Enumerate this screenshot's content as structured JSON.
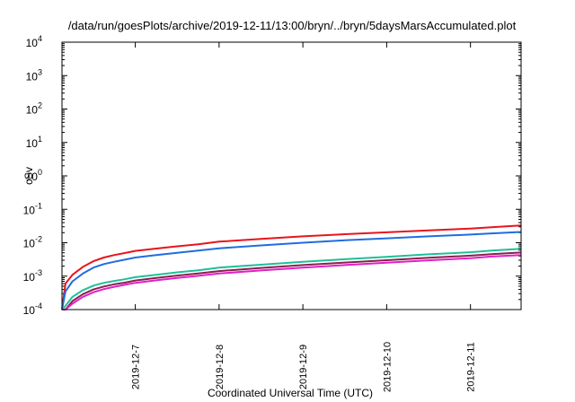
{
  "chart_data": {
    "type": "line",
    "title": "/data/run/goesPlots/archive/2019-12-11/13:00/bryn/../bryn/5daysMarsAccumulated.plot",
    "xlabel": "Coordinated Universal Time (UTC)",
    "ylabel": "cSv",
    "yscale": "log",
    "ylim": [
      0.0001,
      10000
    ],
    "xlim": [
      "2019-12-6 03:00",
      "2019-12-11 14:30"
    ],
    "grid": false,
    "y_ticks": [
      {
        "base": "10",
        "exp": "-4",
        "value": 0.0001
      },
      {
        "base": "10",
        "exp": "-3",
        "value": 0.001
      },
      {
        "base": "10",
        "exp": "-2",
        "value": 0.01
      },
      {
        "base": "10",
        "exp": "-1",
        "value": 0.1
      },
      {
        "base": "10",
        "exp": "0",
        "value": 1
      },
      {
        "base": "10",
        "exp": "1",
        "value": 10
      },
      {
        "base": "10",
        "exp": "2",
        "value": 100
      },
      {
        "base": "10",
        "exp": "3",
        "value": 1000
      },
      {
        "base": "10",
        "exp": "4",
        "value": 10000
      }
    ],
    "x_ticks": [
      "2019-12-7",
      "2019-12-8",
      "2019-12-9",
      "2019-12-10",
      "2019-12-11"
    ],
    "x": [
      "2019-12-6 03:00",
      "2019-12-6 04:00",
      "2019-12-6 06:00",
      "2019-12-6 09:00",
      "2019-12-6 12:00",
      "2019-12-6 15:00",
      "2019-12-6 18:00",
      "2019-12-6 21:00",
      "2019-12-7 00:00",
      "2019-12-7 06:00",
      "2019-12-7 12:00",
      "2019-12-7 18:00",
      "2019-12-8 00:00",
      "2019-12-8 12:00",
      "2019-12-9 00:00",
      "2019-12-9 12:00",
      "2019-12-10 00:00",
      "2019-12-10 12:00",
      "2019-12-11 00:00",
      "2019-12-11 06:00",
      "2019-12-11 14:30"
    ],
    "series": [
      {
        "color": "#e8141c",
        "values": [
          0.0001,
          0.0006,
          0.0011,
          0.0019,
          0.0028,
          0.0036,
          0.0043,
          0.0049,
          0.0057,
          0.0067,
          0.0078,
          0.009,
          0.0108,
          0.013,
          0.0155,
          0.018,
          0.0205,
          0.0235,
          0.0265,
          0.029,
          0.033
        ]
      },
      {
        "color": "#1f6de0",
        "values": [
          0.0001,
          0.00035,
          0.0007,
          0.0012,
          0.0018,
          0.0023,
          0.0027,
          0.0031,
          0.0036,
          0.0043,
          0.005,
          0.0058,
          0.0068,
          0.0083,
          0.01,
          0.0118,
          0.0135,
          0.0155,
          0.0175,
          0.019,
          0.021
        ]
      },
      {
        "color": "#1fbf9a",
        "values": [
          0.0001,
          0.00013,
          0.00024,
          0.00038,
          0.00052,
          0.00063,
          0.00072,
          0.00081,
          0.00093,
          0.0011,
          0.0013,
          0.0015,
          0.0018,
          0.0022,
          0.0027,
          0.0032,
          0.0038,
          0.0045,
          0.0052,
          0.0058,
          0.0066
        ]
      },
      {
        "color": "#8a1f4e",
        "values": [
          9e-05,
          0.0001,
          0.00018,
          0.00029,
          0.0004,
          0.00049,
          0.00057,
          0.00064,
          0.00074,
          0.00088,
          0.00104,
          0.00121,
          0.00142,
          0.00176,
          0.00214,
          0.00255,
          0.003,
          0.00354,
          0.0041,
          0.00455,
          0.0051
        ]
      },
      {
        "color": "#e020c8",
        "values": [
          8e-05,
          9e-05,
          0.00015,
          0.00024,
          0.00033,
          0.00041,
          0.00048,
          0.00055,
          0.00063,
          0.00075,
          0.00088,
          0.00102,
          0.0012,
          0.00148,
          0.0018,
          0.00215,
          0.00252,
          0.00298,
          0.00345,
          0.00385,
          0.0043
        ]
      }
    ]
  }
}
